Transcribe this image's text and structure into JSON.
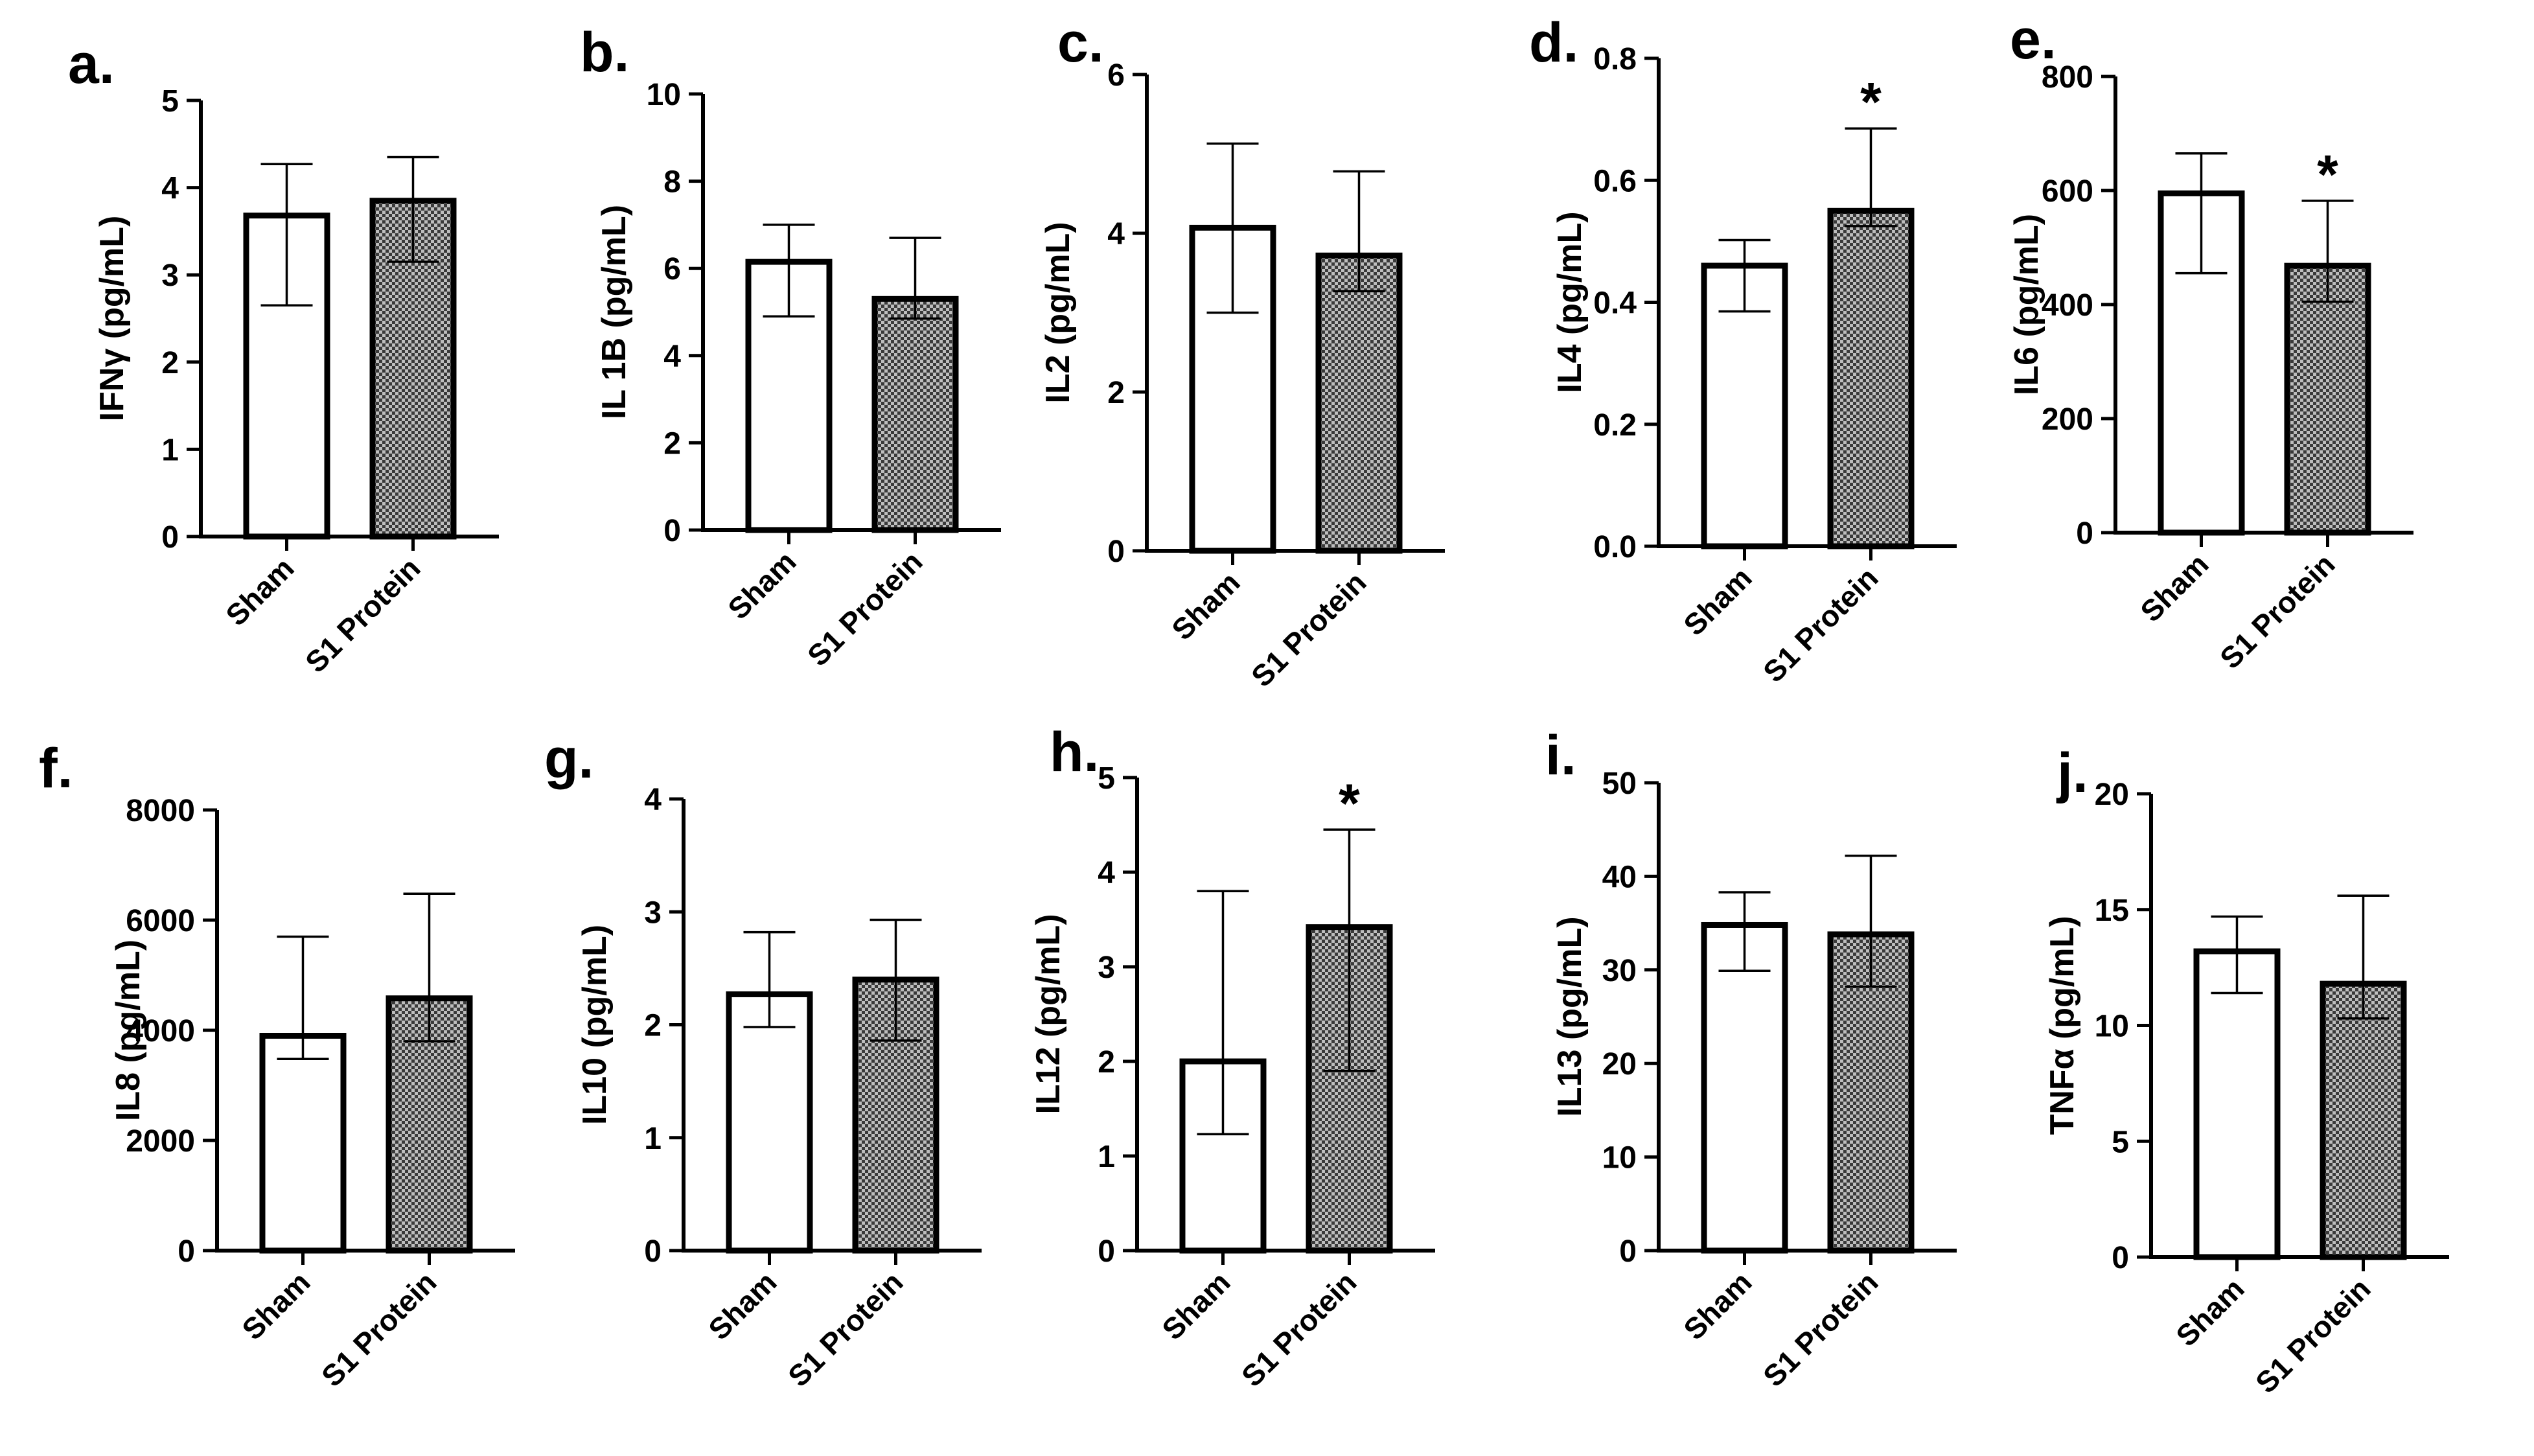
{
  "figure": {
    "background": "#ffffff",
    "bar_colors": {
      "Sham": "#ffffff",
      "S1 Protein": "hatched-gray"
    }
  },
  "chart_data": [
    {
      "panel": "a.",
      "type": "bar",
      "ylabel": "IFNγ (pg/mL)",
      "categories": [
        "Sham",
        "S1 Protein"
      ],
      "values": [
        3.68,
        3.85
      ],
      "err_low": [
        2.65,
        3.15
      ],
      "err_high": [
        4.27,
        4.35
      ],
      "ylim": [
        0,
        5
      ],
      "yticks": [
        "0",
        "1",
        "2",
        "3",
        "4",
        "5"
      ],
      "significance": [
        "",
        ""
      ]
    },
    {
      "panel": "b.",
      "type": "bar",
      "ylabel": "IL 1B (pg/mL)",
      "categories": [
        "Sham",
        "S1 Protein"
      ],
      "values": [
        6.15,
        5.3
      ],
      "err_low": [
        4.9,
        4.85
      ],
      "err_high": [
        7.0,
        6.7
      ],
      "ylim": [
        0,
        10
      ],
      "yticks": [
        "0",
        "2",
        "4",
        "6",
        "8",
        "10"
      ],
      "significance": [
        "",
        ""
      ]
    },
    {
      "panel": "c.",
      "type": "bar",
      "ylabel": "IL2 (pg/mL)",
      "categories": [
        "Sham",
        "S1 Protein"
      ],
      "values": [
        4.07,
        3.72
      ],
      "err_low": [
        3.0,
        3.27
      ],
      "err_high": [
        5.13,
        4.78
      ],
      "ylim": [
        0,
        6
      ],
      "yticks": [
        "0",
        "2",
        "4",
        "6"
      ],
      "significance": [
        "",
        ""
      ]
    },
    {
      "panel": "d.",
      "type": "bar",
      "ylabel": "IL4 (pg/mL)",
      "categories": [
        "Sham",
        "S1 Protein"
      ],
      "values": [
        0.46,
        0.55
      ],
      "err_low": [
        0.385,
        0.525
      ],
      "err_high": [
        0.502,
        0.685
      ],
      "ylim": [
        0,
        0.8
      ],
      "yticks": [
        "0.0",
        "0.2",
        "0.4",
        "0.6",
        "0.8"
      ],
      "significance": [
        "",
        "*"
      ]
    },
    {
      "panel": "e.",
      "type": "bar",
      "ylabel": "IL6 (pg/mL)",
      "categories": [
        "Sham",
        "S1 Protein"
      ],
      "values": [
        595,
        468
      ],
      "err_low": [
        455,
        405
      ],
      "err_high": [
        665,
        582
      ],
      "ylim": [
        0,
        800
      ],
      "yticks": [
        "0",
        "200",
        "400",
        "600",
        "800"
      ],
      "significance": [
        "",
        "*"
      ]
    },
    {
      "panel": "f.",
      "type": "bar",
      "ylabel": "IL8 (pg/mL)",
      "categories": [
        "Sham",
        "S1 Protein"
      ],
      "values": [
        3900,
        4580
      ],
      "err_low": [
        3480,
        3800
      ],
      "err_high": [
        5700,
        6480
      ],
      "ylim": [
        0,
        8000
      ],
      "yticks": [
        "0",
        "2000",
        "4000",
        "6000",
        "8000"
      ],
      "significance": [
        "",
        ""
      ]
    },
    {
      "panel": "g.",
      "type": "bar",
      "ylabel": "IL10 (pg/mL)",
      "categories": [
        "Sham",
        "S1 Protein"
      ],
      "values": [
        2.27,
        2.4
      ],
      "err_low": [
        1.98,
        1.86
      ],
      "err_high": [
        2.82,
        2.93
      ],
      "ylim": [
        0,
        4
      ],
      "yticks": [
        "0",
        "1",
        "2",
        "3",
        "4"
      ],
      "significance": [
        "",
        ""
      ]
    },
    {
      "panel": "h.",
      "type": "bar",
      "ylabel": "IL12 (pg/mL)",
      "categories": [
        "Sham",
        "S1 Protein"
      ],
      "values": [
        2.0,
        3.42
      ],
      "err_low": [
        1.23,
        1.9
      ],
      "err_high": [
        3.8,
        4.45
      ],
      "ylim": [
        0,
        5
      ],
      "yticks": [
        "0",
        "1",
        "2",
        "3",
        "4",
        "5"
      ],
      "significance": [
        "",
        "*"
      ]
    },
    {
      "panel": "i.",
      "type": "bar",
      "ylabel": "IL13 (pg/mL)",
      "categories": [
        "Sham",
        "S1 Protein"
      ],
      "values": [
        34.8,
        33.8
      ],
      "err_low": [
        29.9,
        28.2
      ],
      "err_high": [
        38.3,
        42.2
      ],
      "ylim": [
        0,
        50
      ],
      "yticks": [
        "0",
        "10",
        "20",
        "30",
        "40",
        "50"
      ],
      "significance": [
        "",
        ""
      ]
    },
    {
      "panel": "j.",
      "type": "bar",
      "ylabel": "TNFα (pg/mL)",
      "categories": [
        "Sham",
        "S1 Protein"
      ],
      "values": [
        13.2,
        11.8
      ],
      "err_low": [
        11.4,
        10.3
      ],
      "err_high": [
        14.7,
        15.6
      ],
      "ylim": [
        0,
        20
      ],
      "yticks": [
        "0",
        "5",
        "10",
        "15",
        "20"
      ],
      "significance": [
        "",
        ""
      ]
    }
  ]
}
